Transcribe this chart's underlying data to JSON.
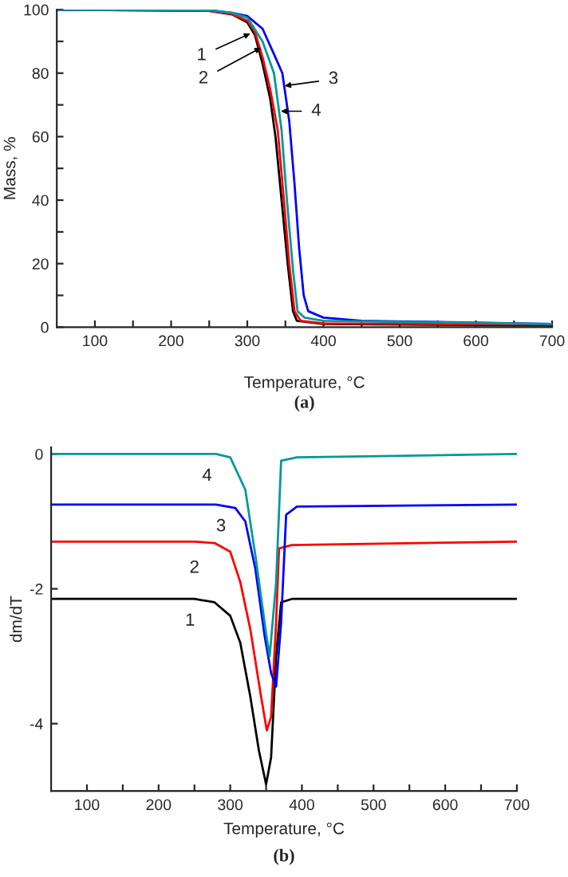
{
  "chart_data": [
    {
      "type": "line",
      "xlabel": "Temperature, °C",
      "ylabel": "Mass, %",
      "xlim": [
        50,
        700
      ],
      "ylim": [
        0,
        100
      ],
      "xticks": [
        100,
        {
          "value": 150,
          "label": null
        },
        200,
        {
          "value": 250,
          "label": null
        },
        300,
        {
          "value": 350,
          "label": null
        },
        400,
        {
          "value": 450,
          "label": null
        },
        500,
        {
          "value": 550,
          "label": null
        },
        600,
        {
          "value": 650,
          "label": null
        },
        700
      ],
      "yticks": [
        0,
        {
          "value": 10,
          "label": null
        },
        20,
        {
          "value": 30,
          "label": null
        },
        40,
        {
          "value": 50,
          "label": null
        },
        60,
        {
          "value": 70,
          "label": null
        },
        80,
        {
          "value": 90,
          "label": null
        },
        100
      ],
      "grid": false,
      "series": [
        {
          "color": "#000000",
          "x": [
            50,
            250,
            280,
            300,
            310,
            320,
            330,
            337,
            345,
            353,
            360,
            365,
            400,
            700
          ],
          "values": [
            100,
            99.6,
            98.5,
            96,
            92,
            83,
            72,
            60,
            40,
            20,
            5,
            2,
            1,
            0.5
          ]
        },
        {
          "color": "#ff0000",
          "x": [
            50,
            250,
            280,
            300,
            310,
            320,
            330,
            340,
            348,
            355,
            362,
            370,
            400,
            700
          ],
          "values": [
            100,
            99.6,
            98.6,
            96.5,
            93,
            85,
            75,
            62,
            40,
            20,
            5,
            2,
            1.2,
            0.8
          ]
        },
        {
          "color": "#0000ff",
          "x": [
            50,
            250,
            280,
            300,
            320,
            335,
            346,
            355,
            362,
            368,
            374,
            380,
            400,
            450,
            700
          ],
          "values": [
            100,
            99.8,
            99,
            98,
            94,
            86,
            80,
            65,
            45,
            25,
            10,
            5,
            3,
            2,
            1
          ]
        },
        {
          "color": "#009999",
          "x": [
            50,
            250,
            280,
            300,
            320,
            335,
            345,
            352,
            360,
            366,
            375,
            400,
            700
          ],
          "values": [
            100,
            99.8,
            99,
            97.5,
            90,
            80,
            62,
            40,
            18,
            5,
            3,
            2,
            1
          ]
        }
      ],
      "annotations": [
        {
          "text": "1",
          "x": 304,
          "y": 92.5
        },
        {
          "text": "2",
          "x": 318,
          "y": 88
        },
        {
          "text": "3",
          "x": 349,
          "y": 76
        },
        {
          "text": "4",
          "x": 344,
          "y": 68
        },
        "(a)"
      ]
    },
    {
      "type": "line",
      "xlabel": "Temperature, °C",
      "ylabel": "dm/dT",
      "xlim": [
        50,
        700
      ],
      "ylim": [
        -5,
        0.1
      ],
      "xticks": [
        100,
        {
          "value": 150,
          "label": null
        },
        200,
        {
          "value": 250,
          "label": null
        },
        300,
        {
          "value": 350,
          "label": null
        },
        400,
        {
          "value": 450,
          "label": null
        },
        500,
        {
          "value": 550,
          "label": null
        },
        600,
        {
          "value": 650,
          "label": null
        },
        700
      ],
      "yticks": [
        -4,
        -2,
        0
      ],
      "grid": false,
      "series": [
        {
          "color": "#000000",
          "x": [
            50,
            250,
            278,
            300,
            314,
            328,
            340,
            350,
            357,
            364,
            371,
            386,
            700
          ],
          "values": [
            -2.15,
            -2.15,
            -2.2,
            -2.4,
            -2.8,
            -3.6,
            -4.4,
            -4.9,
            -4.5,
            -3.0,
            -2.2,
            -2.15,
            -2.15
          ]
        },
        {
          "color": "#ff0000",
          "x": [
            50,
            250,
            278,
            300,
            314,
            328,
            343,
            351,
            357,
            364,
            368,
            386,
            700
          ],
          "values": [
            -1.3,
            -1.3,
            -1.32,
            -1.45,
            -1.9,
            -2.6,
            -3.6,
            -4.1,
            -3.9,
            -2.5,
            -1.4,
            -1.35,
            -1.3
          ]
        },
        {
          "color": "#0000ff",
          "x": [
            50,
            280,
            307,
            321,
            335,
            348,
            357,
            364,
            371,
            378,
            393,
            700
          ],
          "values": [
            -0.75,
            -0.75,
            -0.8,
            -1.0,
            -1.7,
            -2.7,
            -3.25,
            -3.45,
            -2.5,
            -0.9,
            -0.78,
            -0.75
          ]
        },
        {
          "color": "#009999",
          "x": [
            50,
            280,
            300,
            321,
            335,
            350,
            355,
            364,
            371,
            393,
            700
          ],
          "values": [
            0,
            0,
            -0.05,
            -0.53,
            -1.5,
            -2.66,
            -3.0,
            -1.9,
            -0.1,
            -0.05,
            0
          ]
        }
      ],
      "annotations": [
        {
          "text": "1",
          "x": 250,
          "y": -2.15
        },
        {
          "text": "2",
          "x": 250,
          "y": -1.3
        },
        {
          "text": "3",
          "x": 250,
          "y": -0.75
        },
        {
          "text": "4",
          "x": 280,
          "y": 0
        },
        "(b)"
      ]
    }
  ]
}
